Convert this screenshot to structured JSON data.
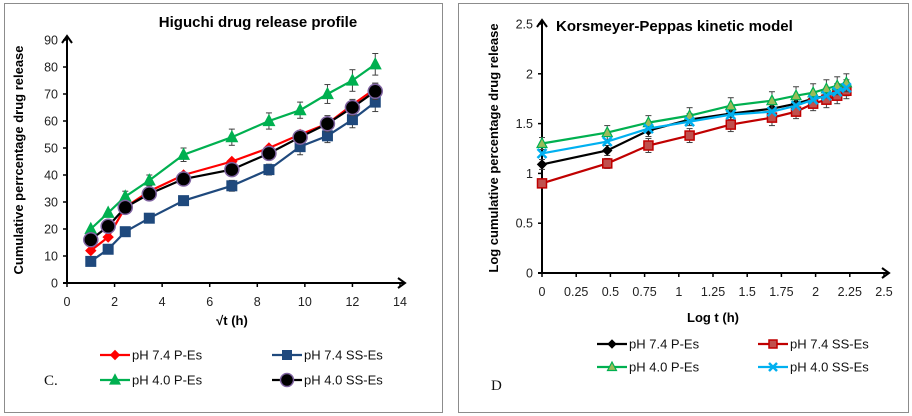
{
  "chart_data": [
    {
      "id": "left",
      "type": "line",
      "title": "Higuchi drug release profile",
      "xlabel": "√t (h)",
      "ylabel": "Cumulative perrcentage drug release",
      "panel_label": "C.",
      "xlim": [
        0,
        14
      ],
      "ylim": [
        0,
        90
      ],
      "xticks": [
        0,
        2,
        4,
        6,
        8,
        10,
        12,
        14
      ],
      "yticks": [
        0,
        10,
        20,
        30,
        40,
        50,
        60,
        70,
        80,
        90
      ],
      "x": [
        1,
        1.73,
        2.45,
        3.46,
        4.9,
        6.93,
        8.49,
        9.8,
        10.95,
        12,
        12.96
      ],
      "grid": false,
      "legend_position": "bottom",
      "series": [
        {
          "name": "pH 7.4 P-Es",
          "color": "#ff0000",
          "marker": "diamond",
          "values": [
            12,
            17,
            28,
            34,
            40,
            45,
            50,
            55,
            59,
            66,
            72
          ],
          "errors": [
            0,
            0,
            0,
            0,
            0,
            0,
            0,
            0,
            0,
            0,
            2
          ]
        },
        {
          "name": "pH 7.4 SS-Es",
          "color": "#1f497d",
          "marker": "square",
          "values": [
            8,
            12.5,
            19,
            24,
            30.5,
            36,
            42,
            50.5,
            54.5,
            60.5,
            67
          ],
          "errors": [
            0,
            0,
            0,
            0,
            0,
            2,
            2,
            3,
            2.5,
            3,
            3.5
          ]
        },
        {
          "name": "pH 4.0 P-Es",
          "color": "#00b050",
          "marker": "triangle",
          "values": [
            20,
            26,
            32,
            38,
            47.5,
            54,
            60,
            64,
            70,
            75,
            81
          ],
          "errors": [
            0,
            0,
            2,
            2,
            2.5,
            3,
            3,
            3,
            3.5,
            4,
            4
          ]
        },
        {
          "name": "pH 4.0 SS-Es",
          "color": "#000000",
          "marker": "circle",
          "values": [
            16,
            21,
            28,
            33,
            38.5,
            42,
            48,
            54,
            59,
            65,
            71
          ],
          "errors": [
            0,
            0,
            0,
            0,
            0,
            0,
            2,
            2.5,
            3,
            3,
            3
          ]
        }
      ]
    },
    {
      "id": "right",
      "type": "line",
      "title": "Korsmeyer-Peppas kinetic model",
      "xlabel": "Log t (h)",
      "ylabel": "Log cumulative percentage drug release",
      "panel_label": "D",
      "xlim": [
        0,
        2.5
      ],
      "ylim": [
        0,
        2.5
      ],
      "xticks": [
        "0",
        "0.25",
        "0.5",
        "0.75",
        "1",
        "1.25",
        "1.5",
        "1.75",
        "2",
        "2.25",
        "2.5"
      ],
      "yticks": [
        "0",
        "0.5",
        "1",
        "1.5",
        "2",
        "2.5"
      ],
      "x": [
        0,
        0.477,
        0.778,
        1.079,
        1.38,
        1.681,
        1.857,
        1.982,
        2.079,
        2.158,
        2.225
      ],
      "grid": false,
      "legend_position": "bottom",
      "series": [
        {
          "name": "pH 7.4 P-Es",
          "color": "#000000",
          "marker": "diamond",
          "values": [
            1.09,
            1.23,
            1.43,
            1.54,
            1.6,
            1.65,
            1.7,
            1.75,
            1.78,
            1.82,
            1.86
          ],
          "errors": [
            0.05,
            0.05,
            0.06,
            0.06,
            0.06,
            0.07,
            0.07,
            0.07,
            0.07,
            0.08,
            0.08
          ]
        },
        {
          "name": "pH 7.4 SS-Es",
          "color": "#c00000",
          "marker": "square",
          "values": [
            0.9,
            1.1,
            1.28,
            1.38,
            1.49,
            1.56,
            1.62,
            1.7,
            1.74,
            1.78,
            1.83
          ],
          "errors": [
            0.04,
            0.05,
            0.07,
            0.07,
            0.07,
            0.08,
            0.07,
            0.07,
            0.08,
            0.08,
            0.08
          ]
        },
        {
          "name": "pH 4.0 P-Es",
          "color": "#00b050",
          "marker": "triangle",
          "values": [
            1.3,
            1.41,
            1.51,
            1.58,
            1.68,
            1.73,
            1.78,
            1.81,
            1.85,
            1.88,
            1.91
          ],
          "errors": [
            0.06,
            0.07,
            0.07,
            0.08,
            0.08,
            0.09,
            0.09,
            0.09,
            0.09,
            0.09,
            0.09
          ]
        },
        {
          "name": "pH 4.0 SS-Es",
          "color": "#00b0f0",
          "marker": "cross",
          "values": [
            1.2,
            1.32,
            1.45,
            1.52,
            1.59,
            1.62,
            1.68,
            1.74,
            1.78,
            1.82,
            1.86
          ],
          "errors": [
            0,
            0,
            0,
            0,
            0,
            0,
            0,
            0,
            0,
            0,
            0
          ]
        }
      ]
    }
  ]
}
